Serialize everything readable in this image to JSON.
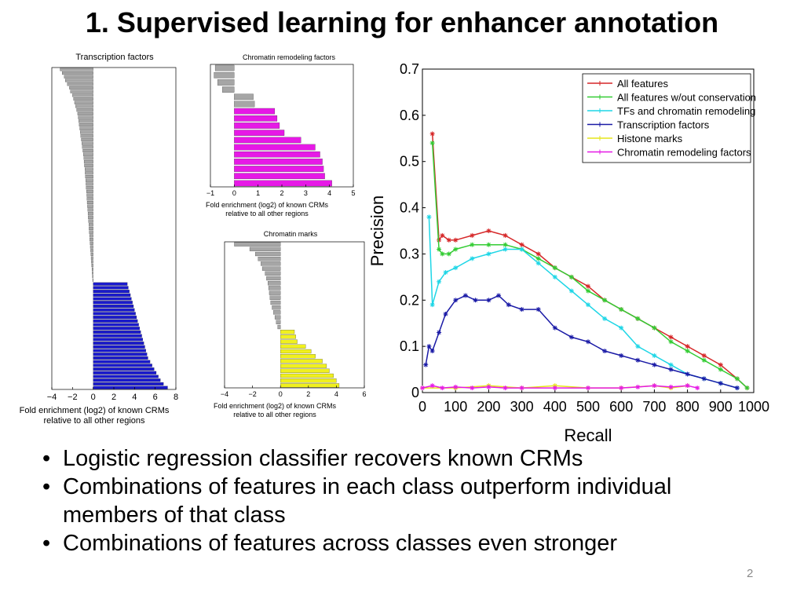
{
  "slide": {
    "title": "1. Supervised learning for enhancer annotation",
    "bullets": [
      "Logistic regression classifier recovers known CRMs",
      "Combinations of features in each class outperform individual members of that class",
      "Combinations of features across classes even stronger"
    ],
    "bullet_glyph": "•",
    "slide_number": "2"
  },
  "chart_data": [
    {
      "id": "transcription-factors",
      "type": "bar",
      "orientation": "horizontal",
      "title": "Transcription factors",
      "xlabel": "Fold enrichment (log2) of known CRMs relative to all other regions",
      "xlim": [
        -4,
        8
      ],
      "xticks": [
        -4,
        -2,
        0,
        2,
        4,
        6,
        8
      ],
      "colors": {
        "negative": "#a6a6a6",
        "positive": "#1a1acc"
      },
      "values": [
        -3.2,
        -3.0,
        -2.8,
        -2.7,
        -2.5,
        -2.3,
        -2.2,
        -2.0,
        -1.9,
        -1.8,
        -1.7,
        -1.6,
        -1.5,
        -1.45,
        -1.4,
        -1.35,
        -1.3,
        -1.25,
        -1.2,
        -1.15,
        -1.1,
        -1.05,
        -1.0,
        -0.95,
        -0.9,
        -0.88,
        -0.85,
        -0.8,
        -0.78,
        -0.75,
        -0.72,
        -0.7,
        -0.68,
        -0.65,
        -0.62,
        -0.6,
        -0.58,
        -0.55,
        -0.52,
        -0.5,
        -0.48,
        -0.45,
        -0.42,
        -0.4,
        -0.38,
        -0.35,
        -0.33,
        -0.3,
        -0.28,
        -0.25,
        -0.22,
        -0.2,
        -0.18,
        -0.15,
        -0.12,
        -0.1,
        -0.08,
        -0.05,
        3.3,
        3.4,
        3.5,
        3.6,
        3.7,
        3.8,
        3.9,
        4.0,
        4.1,
        4.2,
        4.3,
        4.4,
        4.5,
        4.6,
        4.7,
        4.8,
        4.9,
        5.0,
        5.1,
        5.2,
        5.3,
        5.5,
        5.7,
        5.9,
        6.1,
        6.3,
        6.5,
        6.8,
        7.2
      ]
    },
    {
      "id": "chromatin-remodeling",
      "type": "bar",
      "orientation": "horizontal",
      "title": "Chromatin remodeling factors",
      "xlabel": "Fold enrichment (log2) of known CRMs relative to all other regions",
      "xlim": [
        -1,
        5
      ],
      "xticks": [
        -1,
        0,
        1,
        2,
        3,
        4,
        5
      ],
      "colors": {
        "negative": "#a6a6a6",
        "low": "#a6a6a6",
        "high": "#e619e6"
      },
      "high_threshold": 1.5,
      "values": [
        -0.8,
        -0.85,
        -0.7,
        -0.5,
        0.8,
        0.85,
        1.7,
        1.8,
        1.9,
        2.1,
        2.8,
        3.4,
        3.6,
        3.7,
        3.75,
        3.8,
        4.1
      ]
    },
    {
      "id": "chromatin-marks",
      "type": "bar",
      "orientation": "horizontal",
      "title": "Chromatin marks",
      "xlabel": "Fold enrichment (log2) of known CRMs relative to all other regions",
      "xlim": [
        -4,
        6
      ],
      "xticks": [
        -4,
        -2,
        0,
        2,
        4,
        6
      ],
      "colors": {
        "negative": "#a6a6a6",
        "positive": "#f0f01e"
      },
      "values": [
        -3.3,
        -2.2,
        -1.8,
        -1.6,
        -1.4,
        -1.3,
        -1.1,
        -1.0,
        -0.9,
        -0.85,
        -0.8,
        -0.75,
        -0.7,
        -0.6,
        -0.5,
        -0.4,
        -0.3,
        -0.2,
        1.0,
        1.1,
        1.2,
        1.8,
        2.2,
        2.5,
        3.0,
        3.3,
        3.5,
        3.8,
        4.0,
        4.2
      ]
    },
    {
      "id": "precision-recall",
      "type": "line",
      "xlabel": "Recall",
      "ylabel": "Precision",
      "xlim": [
        0,
        1000
      ],
      "ylim": [
        0,
        0.7
      ],
      "xticks": [
        0,
        100,
        200,
        300,
        400,
        500,
        600,
        700,
        800,
        900,
        1000
      ],
      "yticks": [
        0,
        0.1,
        0.2,
        0.3,
        0.4,
        0.5,
        0.6,
        0.7
      ],
      "legend_position": "top-right",
      "series": [
        {
          "name": "All features",
          "color": "#d62728",
          "x": [
            30,
            50,
            60,
            80,
            100,
            150,
            200,
            250,
            300,
            350,
            400,
            450,
            500,
            550,
            600,
            650,
            700,
            750,
            800,
            850,
            900,
            950,
            980
          ],
          "y": [
            0.56,
            0.33,
            0.34,
            0.33,
            0.33,
            0.34,
            0.35,
            0.34,
            0.32,
            0.3,
            0.27,
            0.25,
            0.23,
            0.2,
            0.18,
            0.16,
            0.14,
            0.12,
            0.1,
            0.08,
            0.06,
            0.03,
            0.01
          ]
        },
        {
          "name": "All features w/out conservation",
          "color": "#33cc33",
          "x": [
            30,
            50,
            60,
            80,
            100,
            150,
            200,
            250,
            300,
            350,
            400,
            450,
            500,
            550,
            600,
            650,
            700,
            750,
            800,
            850,
            900,
            950,
            980
          ],
          "y": [
            0.54,
            0.31,
            0.3,
            0.3,
            0.31,
            0.32,
            0.32,
            0.32,
            0.31,
            0.29,
            0.27,
            0.25,
            0.22,
            0.2,
            0.18,
            0.16,
            0.14,
            0.11,
            0.09,
            0.07,
            0.05,
            0.03,
            0.01
          ]
        },
        {
          "name": "TFs and chromatin remodeling",
          "color": "#1ed6e6",
          "x": [
            20,
            30,
            50,
            70,
            100,
            150,
            200,
            250,
            300,
            350,
            400,
            450,
            500,
            550,
            600,
            650,
            700,
            750,
            800,
            850,
            900,
            950
          ],
          "y": [
            0.38,
            0.19,
            0.24,
            0.26,
            0.27,
            0.29,
            0.3,
            0.31,
            0.31,
            0.28,
            0.25,
            0.22,
            0.19,
            0.16,
            0.14,
            0.1,
            0.08,
            0.06,
            0.04,
            0.03,
            0.02,
            0.01
          ]
        },
        {
          "name": "Transcription factors",
          "color": "#1a1aa6",
          "x": [
            10,
            20,
            30,
            50,
            70,
            100,
            130,
            160,
            200,
            230,
            260,
            300,
            350,
            400,
            450,
            500,
            550,
            600,
            650,
            700,
            750,
            800,
            850,
            900,
            950
          ],
          "y": [
            0.06,
            0.1,
            0.09,
            0.13,
            0.17,
            0.2,
            0.21,
            0.2,
            0.2,
            0.21,
            0.19,
            0.18,
            0.18,
            0.14,
            0.12,
            0.11,
            0.09,
            0.08,
            0.07,
            0.06,
            0.05,
            0.04,
            0.03,
            0.02,
            0.01
          ]
        },
        {
          "name": "Histone marks",
          "color": "#e6e619",
          "x": [
            0,
            100,
            200,
            300,
            400,
            500,
            600,
            700,
            750,
            800
          ],
          "y": [
            0.01,
            0.01,
            0.015,
            0.01,
            0.015,
            0.01,
            0.01,
            0.015,
            0.01,
            0.015
          ]
        },
        {
          "name": "Chromatin remodeling factors",
          "color": "#e619e6",
          "x": [
            0,
            30,
            60,
            100,
            150,
            200,
            250,
            300,
            400,
            500,
            600,
            650,
            700,
            750,
            800,
            830
          ],
          "y": [
            0.01,
            0.015,
            0.01,
            0.012,
            0.01,
            0.012,
            0.01,
            0.01,
            0.01,
            0.01,
            0.01,
            0.012,
            0.015,
            0.012,
            0.015,
            0.01
          ]
        }
      ]
    }
  ]
}
